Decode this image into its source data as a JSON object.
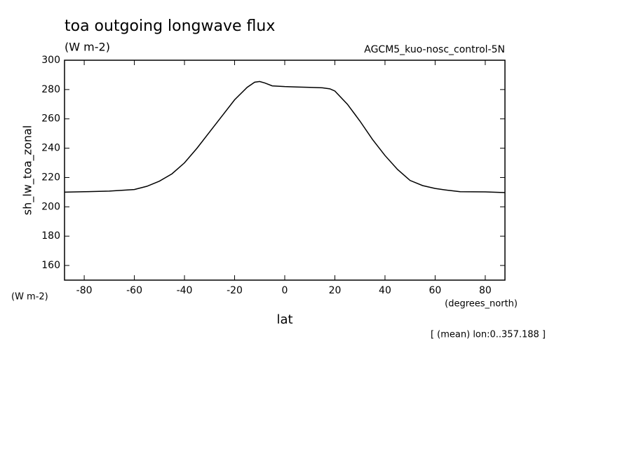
{
  "chart_data": {
    "type": "line",
    "title": "toa outgoing longwave flux",
    "subtitle": "(W m-2)",
    "dataset": "AGCM5_kuo-nosc_control-5N",
    "y_label": "sh_lw_toa_zonal",
    "y_units": "(W m-2)",
    "x_units": "(degrees_north)",
    "x_label": "lat",
    "note": "[ (mean) lon:0..357.188 ]",
    "xlim": [
      -87.86,
      87.86
    ],
    "ylim": [
      150,
      300
    ],
    "xticks": [
      -80,
      -60,
      -40,
      -20,
      0,
      20,
      40,
      60,
      80
    ],
    "yticks": [
      160,
      180,
      200,
      220,
      240,
      260,
      280,
      300
    ],
    "x": [
      -87.86,
      -80,
      -70,
      -60,
      -55,
      -50,
      -45,
      -40,
      -35,
      -30,
      -25,
      -20,
      -15,
      -12,
      -10,
      -8,
      -5,
      0,
      5,
      10,
      15,
      18,
      20,
      25,
      30,
      35,
      40,
      45,
      50,
      55,
      60,
      65,
      70,
      80,
      87.86
    ],
    "series": [
      {
        "color": "#000000",
        "values": [
          210,
          210.3,
          210.7,
          211.8,
          214,
          217.5,
          222.5,
          230,
          240,
          251,
          262,
          273,
          281.5,
          285,
          285.5,
          284.5,
          282.5,
          282,
          281.7,
          281.5,
          281.2,
          280.5,
          279,
          270,
          258.5,
          246,
          235,
          225.5,
          218,
          214.5,
          212.5,
          211.3,
          210.3,
          210.2,
          209.7
        ]
      }
    ]
  }
}
